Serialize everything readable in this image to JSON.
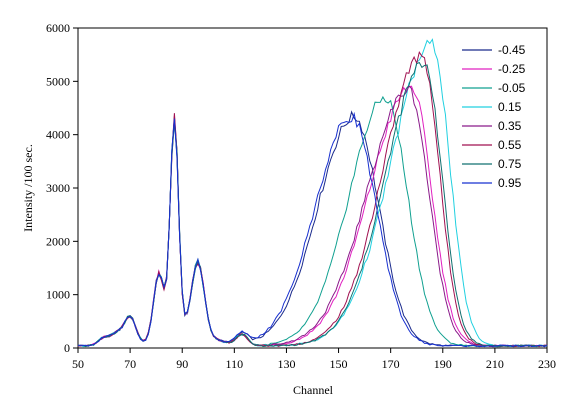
{
  "chart_data": {
    "type": "line",
    "title": "",
    "xlabel": "Channel",
    "ylabel": "Intensity /100 sec.",
    "xlim": [
      50,
      230
    ],
    "ylim": [
      0,
      6000
    ],
    "xticks": [
      50,
      70,
      90,
      110,
      130,
      150,
      170,
      190,
      210,
      230
    ],
    "yticks": [
      0,
      1000,
      2000,
      3000,
      4000,
      5000,
      6000
    ],
    "grid": false,
    "legend_position": "top-right",
    "series": [
      {
        "name": "-0.45",
        "color": "#1a2a8c",
        "peak": 4300,
        "peak_x": 156,
        "left_width": 14,
        "right_width": 10
      },
      {
        "name": "-0.25",
        "color": "#e020c0",
        "peak": 4850,
        "peak_x": 178,
        "left_width": 16,
        "right_width": 8
      },
      {
        "name": "-0.05",
        "color": "#10a090",
        "peak": 4650,
        "peak_x": 168,
        "left_width": 14,
        "right_width": 9
      },
      {
        "name": "0.15",
        "color": "#20d0e0",
        "peak": 5650,
        "peak_x": 186,
        "left_width": 16,
        "right_width": 7
      },
      {
        "name": "0.35",
        "color": "#8a1a8a",
        "peak": 4800,
        "peak_x": 177,
        "left_width": 16,
        "right_width": 8
      },
      {
        "name": "0.55",
        "color": "#a01050",
        "peak": 5450,
        "peak_x": 182,
        "left_width": 15,
        "right_width": 7
      },
      {
        "name": "0.75",
        "color": "#107070",
        "peak": 5300,
        "peak_x": 183,
        "left_width": 15,
        "right_width": 7
      },
      {
        "name": "0.95",
        "color": "#1830d0",
        "peak": 4300,
        "peak_x": 155,
        "left_width": 14,
        "right_width": 10
      }
    ],
    "common_low_channel_peaks": [
      {
        "x": 60,
        "y": 150
      },
      {
        "x": 65,
        "y": 220
      },
      {
        "x": 70,
        "y": 530
      },
      {
        "x": 81,
        "y": 1250
      },
      {
        "x": 87,
        "y": 4050
      },
      {
        "x": 96,
        "y": 1350
      },
      {
        "x": 113,
        "y": 200
      }
    ]
  }
}
